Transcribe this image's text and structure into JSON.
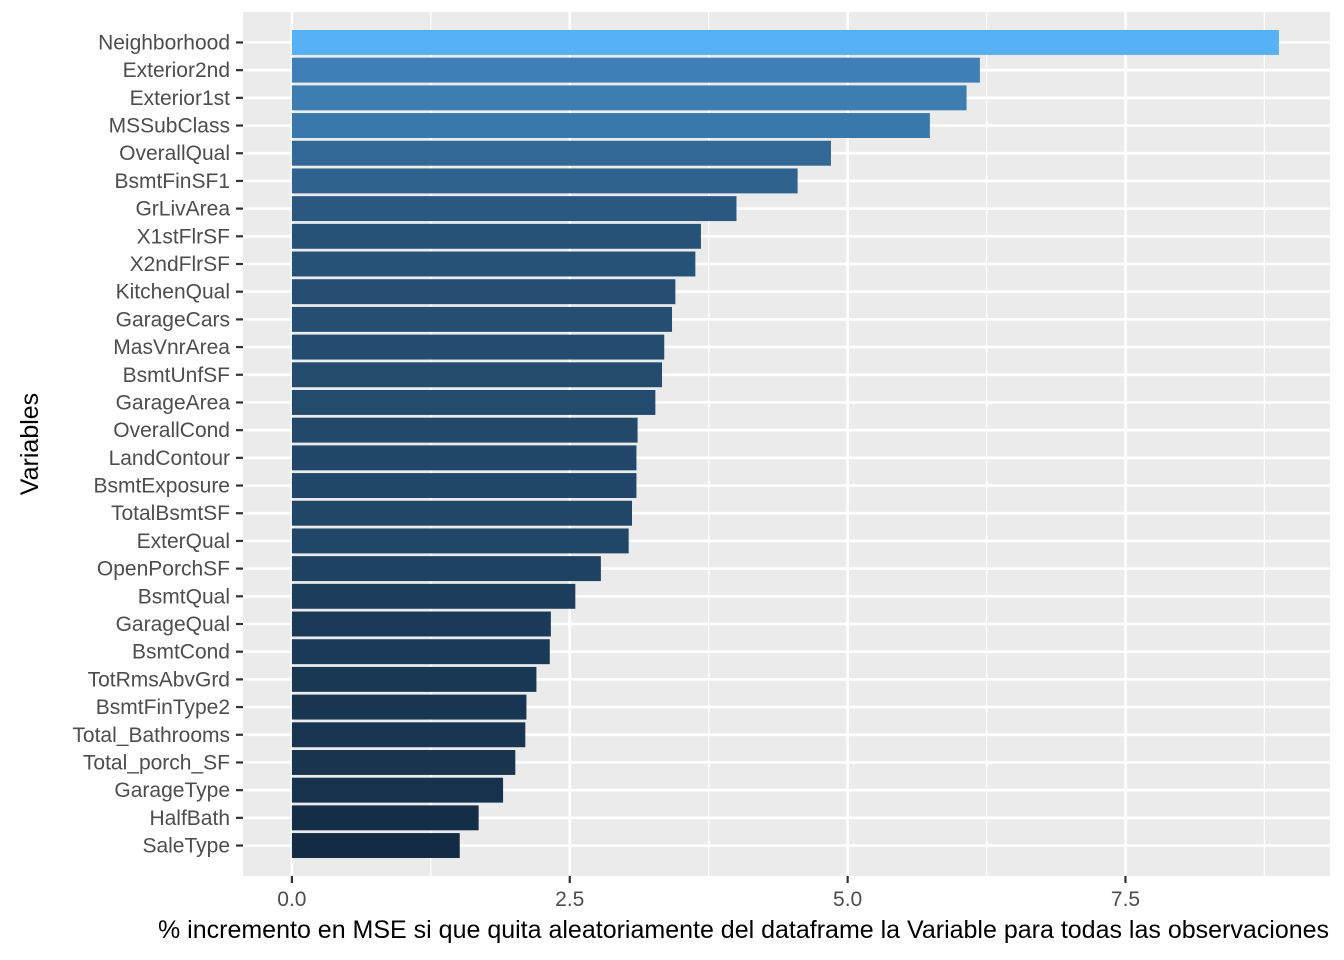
{
  "chart_data": {
    "type": "bar",
    "orientation": "horizontal",
    "xlabel": "% incremento en MSE si que quita aleatoriamente del dataframe la Variable para todas las observaciones",
    "ylabel": "Variables",
    "xlim": [
      -0.44,
      9.34
    ],
    "xticks": [
      0.0,
      2.5,
      5.0,
      7.5
    ],
    "xtick_labels": [
      "0.0",
      "2.5",
      "5.0",
      "7.5"
    ],
    "grid": true,
    "panel_background": "#ebebeb",
    "grid_color": "#ffffff",
    "fill_scale": {
      "low": "#132b43",
      "high": "#56b1f7"
    },
    "categories": [
      "Neighborhood",
      "Exterior2nd",
      "Exterior1st",
      "MSSubClass",
      "OverallQual",
      "BsmtFinSF1",
      "GrLivArea",
      "X1stFlrSF",
      "X2ndFlrSF",
      "KitchenQual",
      "GarageCars",
      "MasVnrArea",
      "BsmtUnfSF",
      "GarageArea",
      "OverallCond",
      "LandContour",
      "BsmtExposure",
      "TotalBsmtSF",
      "ExterQual",
      "OpenPorchSF",
      "BsmtQual",
      "GarageQual",
      "BsmtCond",
      "TotRmsAbvGrd",
      "BsmtFinType2",
      "Total_Bathrooms",
      "Total_porch_SF",
      "GarageType",
      "HalfBath",
      "SaleType"
    ],
    "values": [
      8.88,
      6.19,
      6.07,
      5.74,
      4.85,
      4.55,
      4.0,
      3.68,
      3.63,
      3.45,
      3.42,
      3.35,
      3.33,
      3.27,
      3.11,
      3.1,
      3.1,
      3.06,
      3.03,
      2.78,
      2.55,
      2.33,
      2.32,
      2.2,
      2.11,
      2.1,
      2.01,
      1.9,
      1.68,
      1.51
    ]
  }
}
